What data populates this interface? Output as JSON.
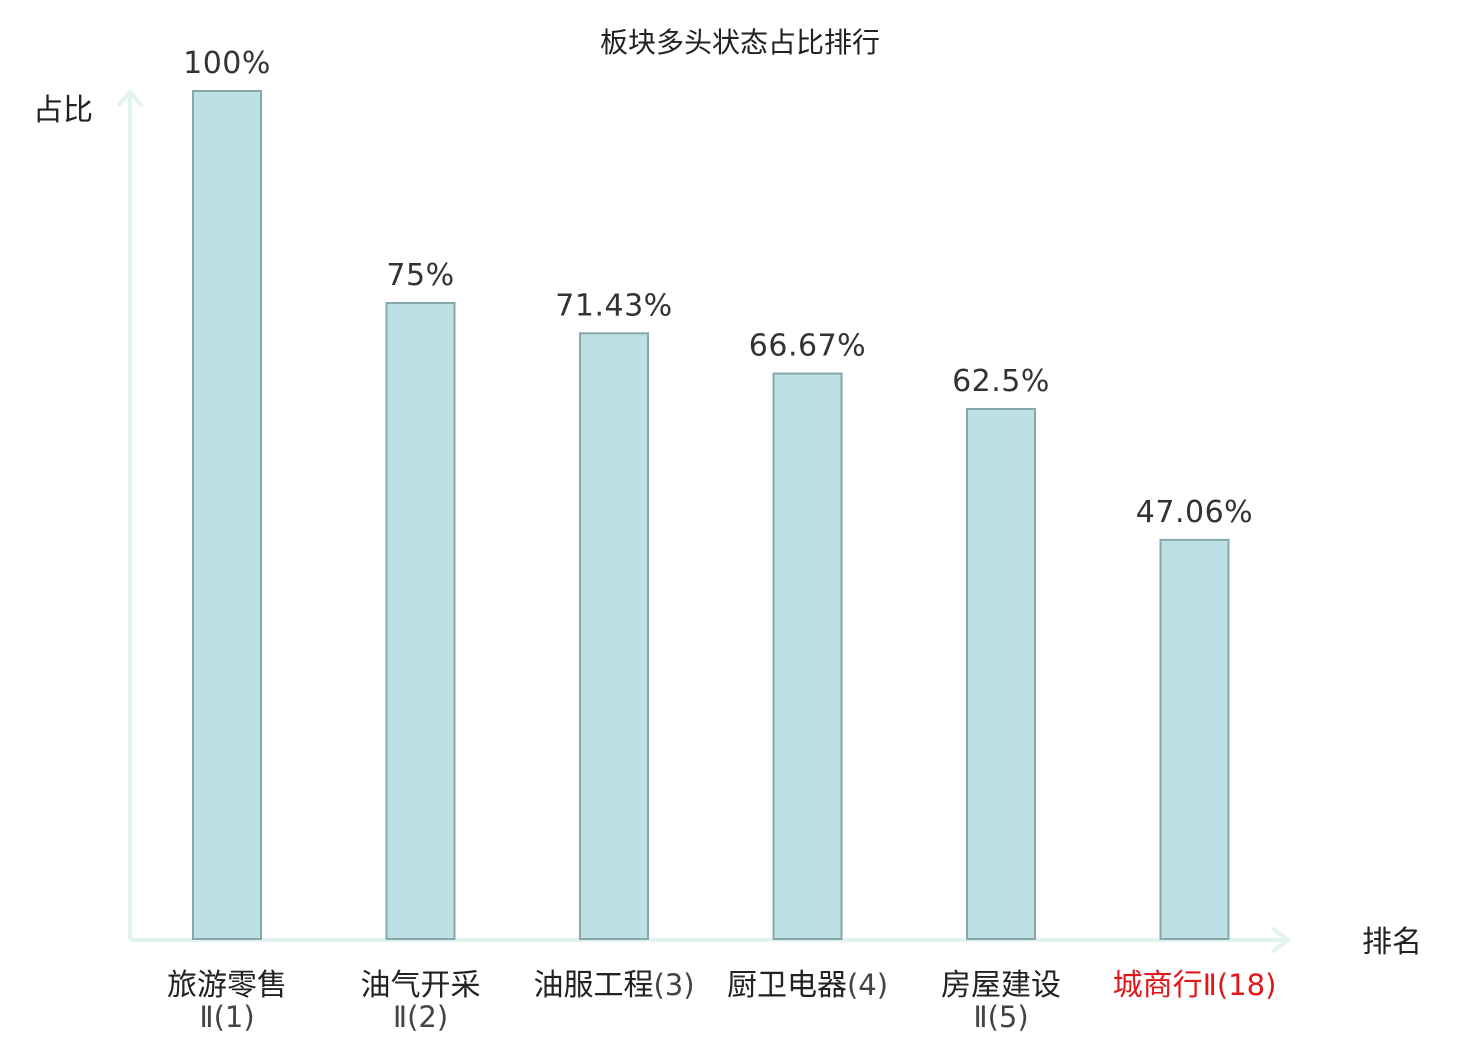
{
  "chart_data": {
    "type": "bar",
    "title": "板块多头状态占比排行",
    "ylabel": "占比",
    "xlabel": "排名",
    "ylim": [
      0,
      100
    ],
    "grid": false,
    "legend": "none",
    "categories": [
      {
        "name": "旅游零售",
        "rank": "Ⅱ(1)",
        "wrap": true,
        "highlight": false
      },
      {
        "name": "油气开采",
        "rank": "Ⅱ(2)",
        "wrap": true,
        "highlight": false
      },
      {
        "name": "油服工程",
        "rank": "(3)",
        "wrap": false,
        "highlight": false
      },
      {
        "name": "厨卫电器",
        "rank": "(4)",
        "wrap": false,
        "highlight": false
      },
      {
        "name": "房屋建设",
        "rank": "Ⅱ(5)",
        "wrap": true,
        "highlight": false
      },
      {
        "name": "城商行",
        "rank": "Ⅱ(18)",
        "wrap": false,
        "highlight": true
      }
    ],
    "values": [
      100,
      75,
      71.43,
      66.67,
      62.5,
      47.06
    ],
    "value_labels": [
      "100%",
      "75%",
      "71.43%",
      "66.67%",
      "62.5%",
      "47.06%"
    ],
    "colors": {
      "bar_fill": "#bce0e3",
      "bar_stroke": "#86a8aa",
      "axis": "#e3f3f1",
      "text": "#222222",
      "rank_text": "#444444",
      "highlight": "#e0181b"
    }
  }
}
